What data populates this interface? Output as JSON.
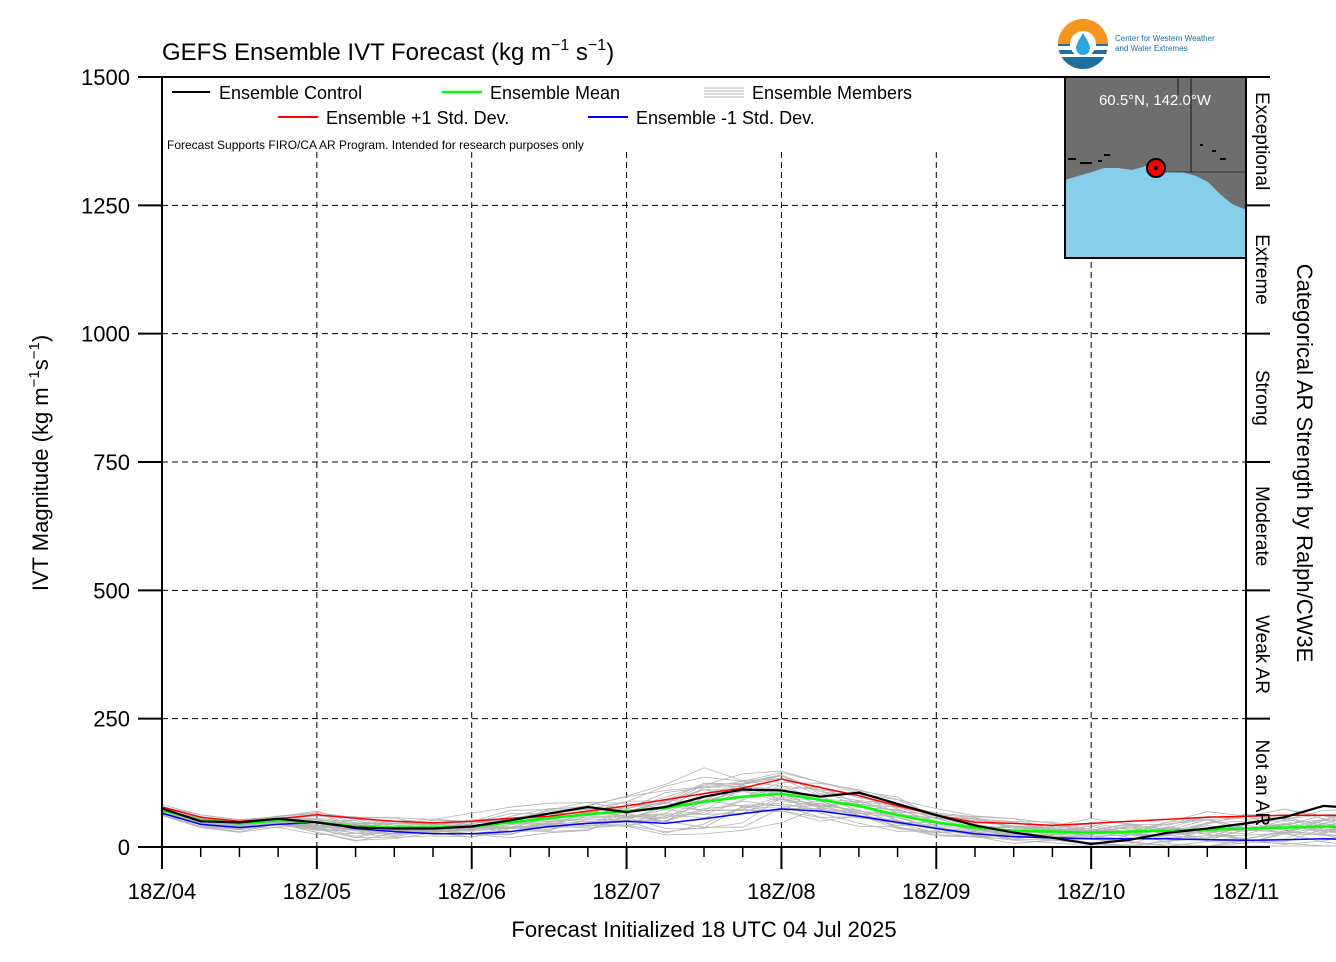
{
  "header": {
    "title_main": "GEFS Ensemble IVT Forecast (kg m",
    "title_exp1": "−1",
    "title_mid": " s",
    "title_exp2": "−1",
    "title_end": ")",
    "logo_line1": "Center for Western Weather",
    "logo_line2": "and Water Extremes"
  },
  "axes": {
    "ylabel_main": "IVT Magnitude (kg m",
    "ylabel_exp1": "−1",
    "ylabel_mid": "s",
    "ylabel_exp2": "−1",
    "ylabel_end": ")",
    "xlabel": "Forecast Initialized 18 UTC 04 Jul 2025",
    "right_label": "Categorical AR Strength by Ralph/CW3E"
  },
  "legend": {
    "control": "Ensemble Control",
    "mean": "Ensemble Mean",
    "members": "Ensemble Members",
    "plus_sd": "Ensemble +1 Std. Dev.",
    "minus_sd": "Ensemble -1 Std. Dev.",
    "note": "Forecast Supports FIRO/CA AR Program. Intended for research purposes only"
  },
  "inset": {
    "location": "60.5°N, 142.0°W",
    "land_color": "#6e6e6e",
    "ocean_color": "#87ceeb"
  },
  "colors": {
    "control": "#000000",
    "mean": "#00ff00",
    "plus_sd": "#ff0000",
    "minus_sd": "#0000ff",
    "members": "#b4b4b4"
  },
  "chart_data": {
    "type": "line",
    "title": "GEFS Ensemble IVT Forecast (kg m−1 s−1)",
    "xlabel": "Forecast Initialized 18 UTC 04 Jul 2025",
    "ylabel": "IVT Magnitude (kg m−1s−1)",
    "ylim": [
      0,
      1500
    ],
    "xlim": [
      0,
      168
    ],
    "x_unit": "forecast hour",
    "x_step_hours": 6,
    "yticks": [
      0,
      250,
      500,
      750,
      1000,
      1250,
      1500
    ],
    "xticks": [
      {
        "x": 0,
        "label": "18Z/04"
      },
      {
        "x": 24,
        "label": "18Z/05"
      },
      {
        "x": 48,
        "label": "18Z/06"
      },
      {
        "x": 72,
        "label": "18Z/07"
      },
      {
        "x": 96,
        "label": "18Z/08"
      },
      {
        "x": 120,
        "label": "18Z/09"
      },
      {
        "x": 144,
        "label": "18Z/10"
      },
      {
        "x": 168,
        "label": "18Z/11"
      }
    ],
    "grid": true,
    "categories_right": [
      {
        "label": "Not an AR",
        "range": [
          0,
          250
        ]
      },
      {
        "label": "Weak AR",
        "range": [
          250,
          500
        ]
      },
      {
        "label": "Moderate",
        "range": [
          500,
          750
        ]
      },
      {
        "label": "Strong",
        "range": [
          750,
          1000
        ]
      },
      {
        "label": "Extreme",
        "range": [
          1000,
          1250
        ]
      },
      {
        "label": "Exceptional",
        "range": [
          1250,
          1500
        ]
      }
    ],
    "series": [
      {
        "name": "Ensemble Control",
        "key": "control",
        "values": [
          75,
          50,
          48,
          55,
          48,
          38,
          36,
          36,
          40,
          52,
          65,
          78,
          68,
          78,
          98,
          112,
          110,
          98,
          106,
          84,
          62,
          42,
          28,
          18,
          6,
          14,
          28,
          36,
          46,
          58,
          80,
          75,
          60,
          68,
          68,
          52,
          42,
          46,
          58,
          70,
          70,
          66,
          45,
          36,
          26,
          22,
          14,
          10,
          10,
          16,
          20,
          18,
          20,
          30,
          25
        ]
      },
      {
        "name": "Ensemble Mean",
        "key": "mean",
        "values": [
          72,
          52,
          46,
          52,
          48,
          40,
          38,
          38,
          40,
          48,
          56,
          64,
          70,
          76,
          88,
          98,
          104,
          92,
          80,
          62,
          48,
          38,
          32,
          30,
          28,
          30,
          32,
          34,
          36,
          38,
          40,
          38,
          38,
          40,
          42,
          44,
          45,
          46,
          48,
          50,
          54,
          56,
          56,
          55,
          65,
          70,
          66,
          66,
          70,
          60,
          50,
          48,
          50,
          50,
          48
        ]
      },
      {
        "name": "Ensemble +1 Std. Dev.",
        "key": "plus_sd",
        "values": [
          78,
          58,
          50,
          55,
          63,
          56,
          50,
          47,
          50,
          56,
          60,
          70,
          80,
          92,
          104,
          115,
          132,
          116,
          100,
          80,
          62,
          48,
          46,
          42,
          46,
          50,
          54,
          58,
          60,
          62,
          62,
          60,
          62,
          66,
          68,
          70,
          74,
          78,
          80,
          85,
          88,
          86,
          82,
          92,
          108,
          118,
          108,
          114,
          118,
          100,
          76,
          76,
          80,
          78,
          76
        ]
      },
      {
        "name": "Ensemble -1 Std. Dev.",
        "key": "minus_sd",
        "values": [
          66,
          44,
          38,
          44,
          48,
          36,
          30,
          26,
          26,
          30,
          40,
          46,
          50,
          46,
          55,
          65,
          74,
          70,
          60,
          48,
          36,
          26,
          20,
          18,
          16,
          16,
          16,
          14,
          13,
          14,
          16,
          14,
          14,
          15,
          17,
          17,
          18,
          16,
          18,
          21,
          26,
          30,
          28,
          26,
          26,
          26,
          24,
          22,
          18,
          18,
          16,
          15,
          16,
          18,
          18
        ]
      }
    ]
  }
}
